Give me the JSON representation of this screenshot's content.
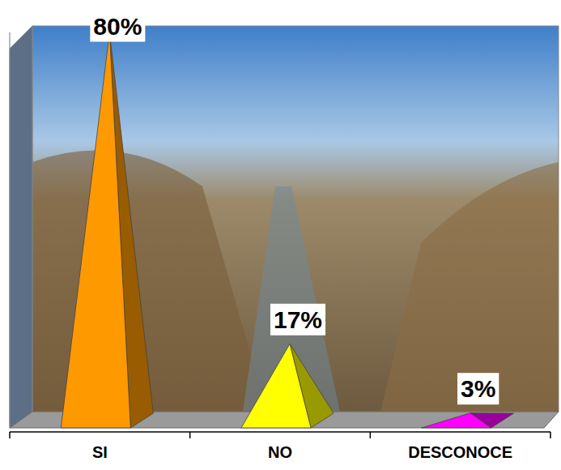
{
  "chart_data": {
    "type": "bar",
    "categories": [
      "SI",
      "NO",
      "DESCONOCE"
    ],
    "values": [
      80,
      17,
      3
    ],
    "value_labels": [
      "80%",
      "17%",
      "3%"
    ],
    "colors": [
      "#ff9900",
      "#ffff00",
      "#ff00ff"
    ],
    "ylim": [
      0,
      80
    ],
    "data_labels": true,
    "tick_labels": "x"
  }
}
